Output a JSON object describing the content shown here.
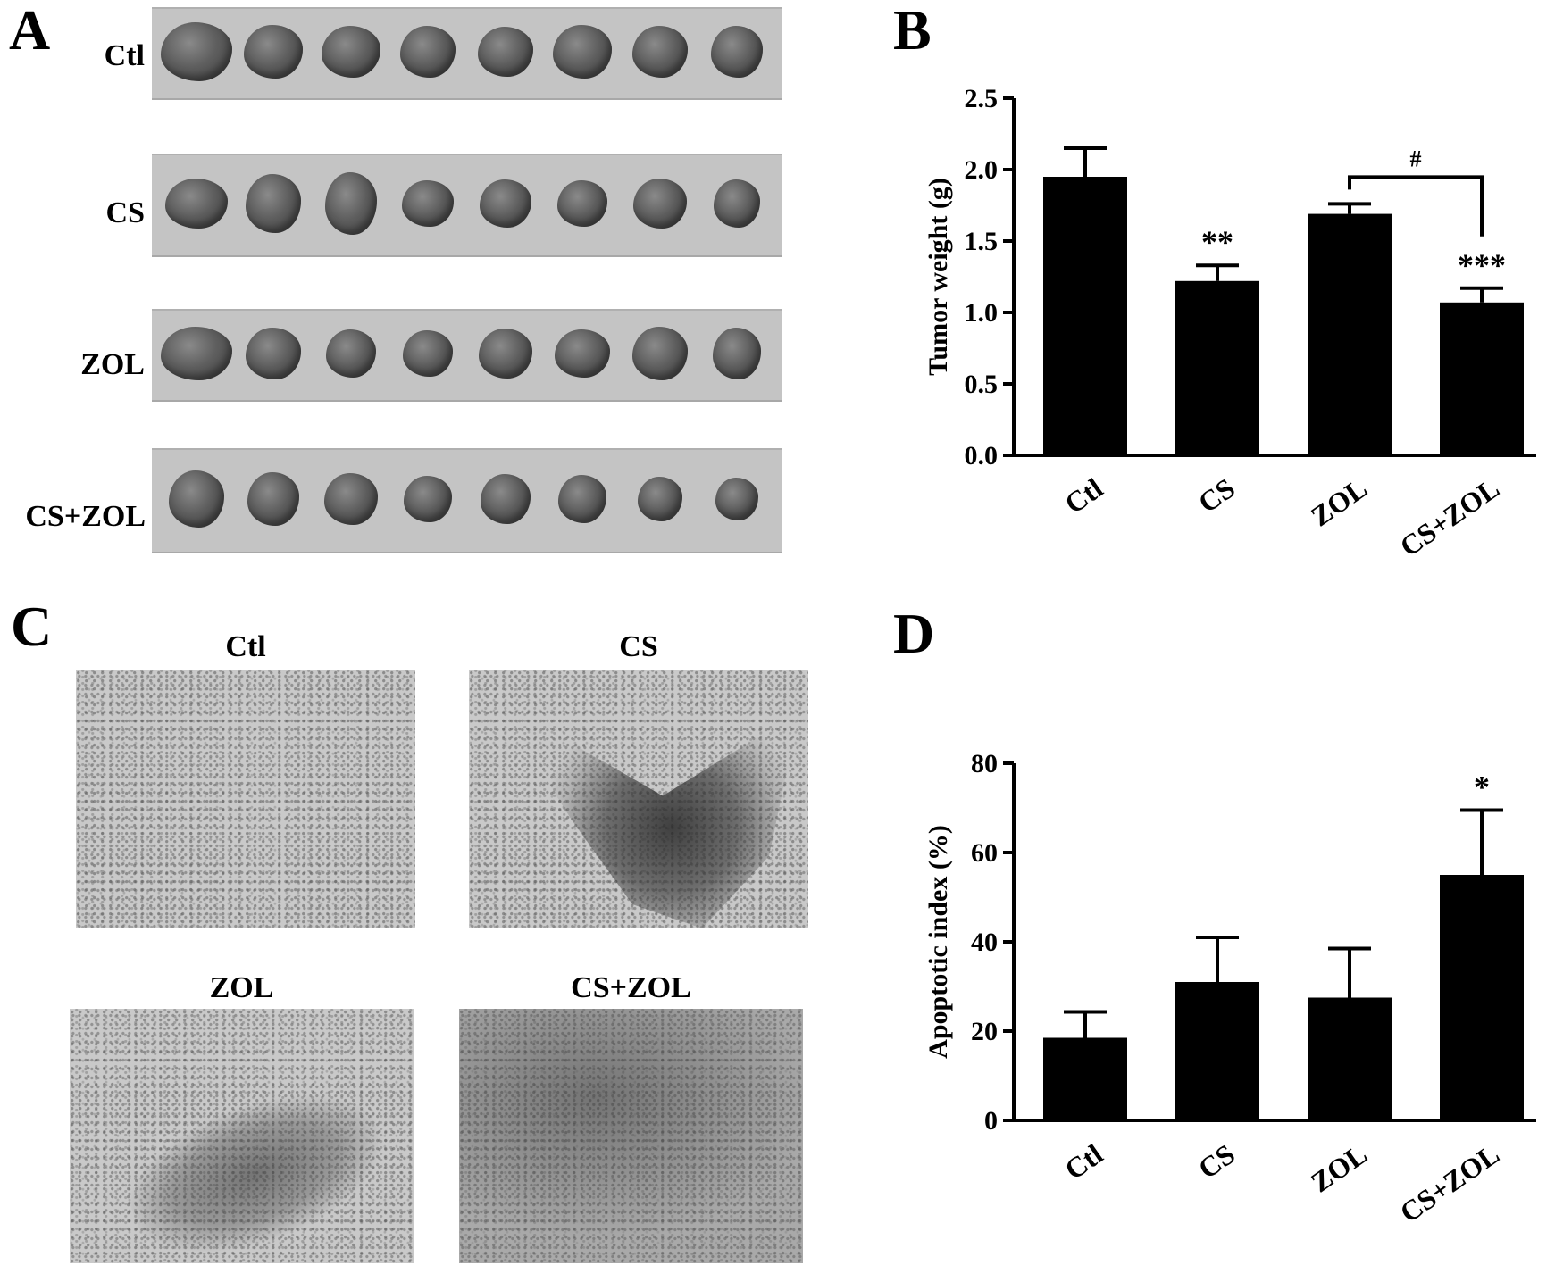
{
  "panels": {
    "a_letter": "A",
    "b_letter": "B",
    "c_letter": "C",
    "d_letter": "D"
  },
  "panel_a": {
    "rows": [
      {
        "label": "Ctl",
        "tumor_count": 8
      },
      {
        "label": "CS",
        "tumor_count": 8
      },
      {
        "label": "ZOL",
        "tumor_count": 8
      },
      {
        "label": "CS+ZOL",
        "tumor_count": 8
      }
    ]
  },
  "panel_c": {
    "titles": [
      "Ctl",
      "CS",
      "ZOL",
      "CS+ZOL"
    ]
  },
  "chart_data": [
    {
      "type": "bar",
      "panel": "B",
      "categories": [
        "Ctl",
        "CS",
        "ZOL",
        "CS+ZOL"
      ],
      "values": [
        1.95,
        1.22,
        1.69,
        1.07
      ],
      "errors": [
        0.2,
        0.11,
        0.07,
        0.1
      ],
      "annotations": [
        "",
        "**",
        "",
        "***"
      ],
      "bracket": {
        "from": 2,
        "to": 3,
        "label": "#"
      },
      "ylabel": "Tumor weight (g)",
      "ylim": [
        0,
        2.5
      ],
      "yticks": [
        "0.0",
        "0.5",
        "1.0",
        "1.5",
        "2.0",
        "2.5"
      ],
      "ytick_values": [
        0,
        0.5,
        1.0,
        1.5,
        2.0,
        2.5
      ],
      "bar_color": "#000000"
    },
    {
      "type": "bar",
      "panel": "D",
      "categories": [
        "Ctl",
        "CS",
        "ZOL",
        "CS+ZOL"
      ],
      "values": [
        18.5,
        31,
        27.5,
        55
      ],
      "errors": [
        5.8,
        10,
        11,
        14.5
      ],
      "annotations": [
        "",
        "",
        "",
        "*"
      ],
      "ylabel": "Apoptotic index (%)",
      "ylim": [
        0,
        80
      ],
      "yticks": [
        "0",
        "20",
        "40",
        "60",
        "80"
      ],
      "ytick_values": [
        0,
        20,
        40,
        60,
        80
      ],
      "bar_color": "#000000"
    }
  ]
}
